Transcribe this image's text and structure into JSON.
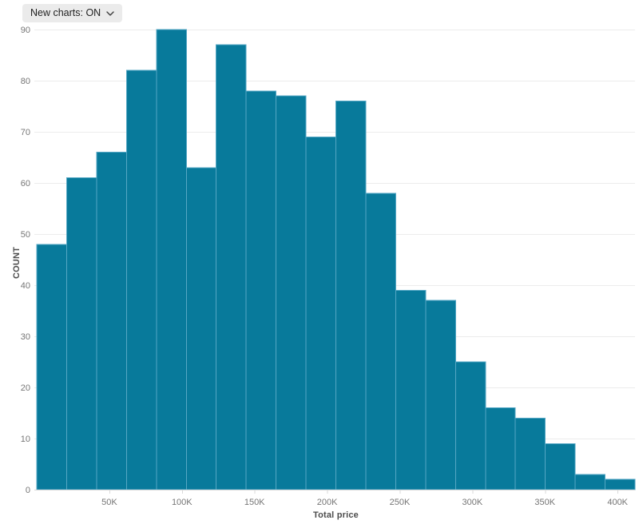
{
  "page": {
    "background": "#ffffff"
  },
  "controls": {
    "new_charts_dropdown": {
      "label": "New charts: ON",
      "icon": "chevron-down",
      "background": "#ebebeb",
      "text_color": "#1f1f1f"
    }
  },
  "chart_data": {
    "type": "bar",
    "subtype": "histogram",
    "title": "",
    "xlabel": "Total price",
    "ylabel": "COUNT",
    "bins": 20,
    "x_domain": [
      0,
      412000
    ],
    "counts": [
      48,
      61,
      66,
      82,
      90,
      63,
      87,
      78,
      77,
      69,
      76,
      58,
      39,
      37,
      25,
      16,
      14,
      9,
      3,
      2
    ],
    "x_ticks": [
      {
        "value": 50000,
        "label": "50K"
      },
      {
        "value": 100000,
        "label": "100K"
      },
      {
        "value": 150000,
        "label": "150K"
      },
      {
        "value": 200000,
        "label": "200K"
      },
      {
        "value": 250000,
        "label": "250K"
      },
      {
        "value": 300000,
        "label": "300K"
      },
      {
        "value": 350000,
        "label": "350K"
      },
      {
        "value": 400000,
        "label": "400K"
      }
    ],
    "y_ticks": [
      0,
      10,
      20,
      30,
      40,
      50,
      60,
      70,
      80,
      90
    ],
    "ylim": [
      0,
      90
    ],
    "grid": "horizontal-only",
    "legend": "none",
    "colors": {
      "bar_fill": "#087a9b",
      "bar_stroke": "#55a7c4",
      "gridline": "#ececec",
      "axis_line": "#d9d9d9",
      "tick_text": "#767676",
      "axis_title_text": "#4c4c4c"
    }
  }
}
